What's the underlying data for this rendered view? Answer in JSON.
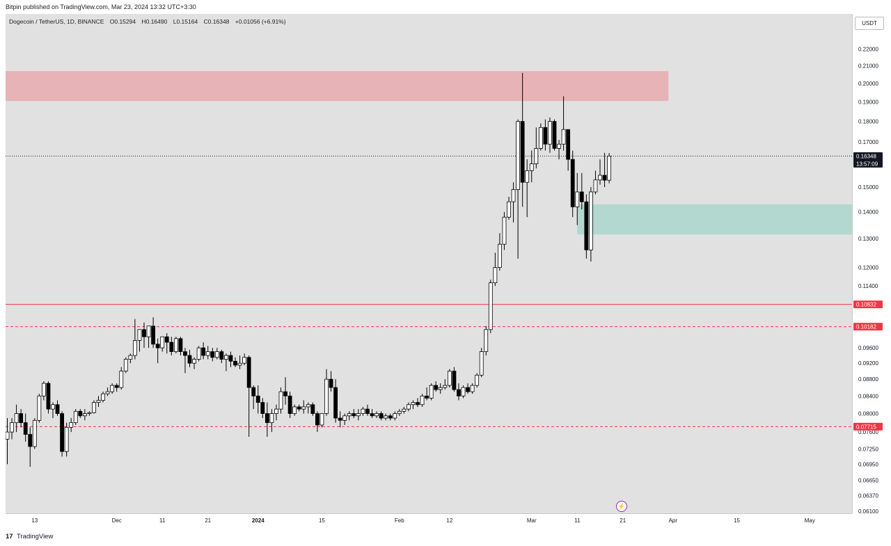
{
  "header": {
    "published": "Bitpin published on TradingView.com, Mar 23, 2024 13:32 UTC+3:30",
    "symbol": "Dogecoin / TetherUS, 1D, BINANCE",
    "open": "O0.15294",
    "high": "H0.16490",
    "low": "L0.15164",
    "close": "C0.16348",
    "change": "+0.01056 (+6.91%)"
  },
  "currency": "USDT",
  "footer": {
    "logo_mark": "17",
    "logo_text": "TradingView"
  },
  "chart_data": {
    "type": "candlestick",
    "title": "Dogecoin / TetherUS, 1D, BINANCE",
    "interval": "1D",
    "y_scale": "log",
    "ylim": [
      0.061,
      0.225
    ],
    "y_ticks": [
      "0.22000",
      "0.21000",
      "0.20000",
      "0.19000",
      "0.18000",
      "0.17000",
      "0.15000",
      "0.14000",
      "0.13000",
      "0.12000",
      "0.11400",
      "0.09600",
      "0.09200",
      "0.08800",
      "0.08400",
      "0.08000",
      "0.07600",
      "0.07250",
      "0.06950",
      "0.06650",
      "0.06370",
      "0.06100"
    ],
    "x_ticks": [
      {
        "label": "13",
        "date": "2023-11-13"
      },
      {
        "label": "Dec",
        "date": "2023-12-01"
      },
      {
        "label": "11",
        "date": "2023-12-11"
      },
      {
        "label": "21",
        "date": "2023-12-21"
      },
      {
        "label": "2024",
        "date": "2024-01-01",
        "bold": true
      },
      {
        "label": "15",
        "date": "2024-01-15"
      },
      {
        "label": "Feb",
        "date": "2024-02-01"
      },
      {
        "label": "12",
        "date": "2024-02-12"
      },
      {
        "label": "Mar",
        "date": "2024-03-01"
      },
      {
        "label": "11",
        "date": "2024-03-11"
      },
      {
        "label": "21",
        "date": "2024-03-21"
      },
      {
        "label": "Apr",
        "date": "2024-04-01"
      },
      {
        "label": "15",
        "date": "2024-04-15"
      },
      {
        "label": "May",
        "date": "2024-05-01"
      }
    ],
    "x_start_date": "2023-11-07",
    "candles_ohlc": [
      [
        0.0745,
        0.079,
        0.0695,
        0.076
      ],
      [
        0.076,
        0.079,
        0.0745,
        0.078
      ],
      [
        0.078,
        0.082,
        0.076,
        0.08
      ],
      [
        0.08,
        0.081,
        0.077,
        0.078
      ],
      [
        0.078,
        0.08,
        0.074,
        0.0755
      ],
      [
        0.0755,
        0.077,
        0.069,
        0.073
      ],
      [
        0.073,
        0.079,
        0.0725,
        0.0785
      ],
      [
        0.0785,
        0.0845,
        0.078,
        0.084
      ],
      [
        0.084,
        0.0875,
        0.083,
        0.087
      ],
      [
        0.087,
        0.0875,
        0.08,
        0.081
      ],
      [
        0.081,
        0.0825,
        0.079,
        0.082
      ],
      [
        0.082,
        0.083,
        0.0795,
        0.08
      ],
      [
        0.08,
        0.0805,
        0.071,
        0.072
      ],
      [
        0.072,
        0.078,
        0.071,
        0.077
      ],
      [
        0.077,
        0.079,
        0.076,
        0.078
      ],
      [
        0.078,
        0.081,
        0.0775,
        0.0805
      ],
      [
        0.0805,
        0.081,
        0.079,
        0.0795
      ],
      [
        0.0795,
        0.081,
        0.0785,
        0.08
      ],
      [
        0.08,
        0.0805,
        0.0795,
        0.0802
      ],
      [
        0.0802,
        0.083,
        0.08,
        0.0825
      ],
      [
        0.0825,
        0.084,
        0.0815,
        0.083
      ],
      [
        0.083,
        0.085,
        0.0825,
        0.0845
      ],
      [
        0.0845,
        0.086,
        0.084,
        0.085
      ],
      [
        0.085,
        0.087,
        0.0845,
        0.0865
      ],
      [
        0.0865,
        0.087,
        0.085,
        0.086
      ],
      [
        0.086,
        0.091,
        0.0855,
        0.09
      ],
      [
        0.09,
        0.0935,
        0.0895,
        0.093
      ],
      [
        0.093,
        0.0945,
        0.092,
        0.094
      ],
      [
        0.094,
        0.104,
        0.093,
        0.098
      ],
      [
        0.098,
        0.1,
        0.095,
        0.101
      ],
      [
        0.101,
        0.103,
        0.096,
        0.099
      ],
      [
        0.099,
        0.102,
        0.096,
        0.102
      ],
      [
        0.102,
        0.1045,
        0.096,
        0.097
      ],
      [
        0.097,
        0.0985,
        0.092,
        0.096
      ],
      [
        0.096,
        0.099,
        0.095,
        0.099
      ],
      [
        0.099,
        0.1,
        0.0945,
        0.0975
      ],
      [
        0.0975,
        0.099,
        0.094,
        0.095
      ],
      [
        0.095,
        0.099,
        0.0945,
        0.0985
      ],
      [
        0.0985,
        0.099,
        0.094,
        0.095
      ],
      [
        0.095,
        0.096,
        0.0895,
        0.094
      ],
      [
        0.094,
        0.0955,
        0.091,
        0.092
      ],
      [
        0.092,
        0.0935,
        0.0905,
        0.093
      ],
      [
        0.093,
        0.0965,
        0.0925,
        0.096
      ],
      [
        0.096,
        0.0975,
        0.093,
        0.094
      ],
      [
        0.094,
        0.0965,
        0.093,
        0.095
      ],
      [
        0.095,
        0.096,
        0.0925,
        0.0935
      ],
      [
        0.0935,
        0.096,
        0.093,
        0.095
      ],
      [
        0.095,
        0.0955,
        0.092,
        0.093
      ],
      [
        0.093,
        0.0945,
        0.09,
        0.094
      ],
      [
        0.094,
        0.095,
        0.091,
        0.0925
      ],
      [
        0.0925,
        0.0935,
        0.091,
        0.0915
      ],
      [
        0.0915,
        0.094,
        0.0905,
        0.092
      ],
      [
        0.092,
        0.0945,
        0.0915,
        0.0935
      ],
      [
        0.0935,
        0.094,
        0.075,
        0.086
      ],
      [
        0.086,
        0.0865,
        0.081,
        0.084
      ],
      [
        0.084,
        0.0865,
        0.08,
        0.0825
      ],
      [
        0.0825,
        0.0835,
        0.079,
        0.08
      ],
      [
        0.08,
        0.0825,
        0.075,
        0.078
      ],
      [
        0.078,
        0.081,
        0.076,
        0.08
      ],
      [
        0.08,
        0.082,
        0.0785,
        0.081
      ],
      [
        0.081,
        0.086,
        0.08,
        0.085
      ],
      [
        0.085,
        0.0885,
        0.082,
        0.084
      ],
      [
        0.084,
        0.085,
        0.079,
        0.08
      ],
      [
        0.08,
        0.082,
        0.0795,
        0.0815
      ],
      [
        0.0815,
        0.082,
        0.0805,
        0.081
      ],
      [
        0.081,
        0.083,
        0.08,
        0.0815
      ],
      [
        0.0815,
        0.0825,
        0.08,
        0.082
      ],
      [
        0.082,
        0.0825,
        0.0795,
        0.08
      ],
      [
        0.08,
        0.0805,
        0.076,
        0.0775
      ],
      [
        0.0775,
        0.08,
        0.077,
        0.08
      ],
      [
        0.08,
        0.0905,
        0.0795,
        0.088
      ],
      [
        0.088,
        0.09,
        0.085,
        0.086
      ],
      [
        0.086,
        0.088,
        0.078,
        0.079
      ],
      [
        0.079,
        0.0805,
        0.077,
        0.0785
      ],
      [
        0.0785,
        0.08,
        0.0775,
        0.0795
      ],
      [
        0.0795,
        0.0805,
        0.0785,
        0.08
      ],
      [
        0.08,
        0.081,
        0.079,
        0.0795
      ],
      [
        0.0795,
        0.081,
        0.0785,
        0.08
      ],
      [
        0.08,
        0.0815,
        0.0795,
        0.081
      ],
      [
        0.081,
        0.082,
        0.0795,
        0.08
      ],
      [
        0.08,
        0.081,
        0.079,
        0.0795
      ],
      [
        0.0795,
        0.0805,
        0.079,
        0.08
      ],
      [
        0.08,
        0.0805,
        0.0785,
        0.079
      ],
      [
        0.079,
        0.08,
        0.0785,
        0.0795
      ],
      [
        0.0795,
        0.08,
        0.0785,
        0.079
      ],
      [
        0.079,
        0.0805,
        0.0785,
        0.08
      ],
      [
        0.08,
        0.081,
        0.0795,
        0.0805
      ],
      [
        0.0805,
        0.0815,
        0.08,
        0.081
      ],
      [
        0.081,
        0.0825,
        0.0805,
        0.082
      ],
      [
        0.082,
        0.083,
        0.081,
        0.0825
      ],
      [
        0.0825,
        0.0835,
        0.0815,
        0.082
      ],
      [
        0.082,
        0.0845,
        0.0815,
        0.084
      ],
      [
        0.084,
        0.086,
        0.083,
        0.0835
      ],
      [
        0.0835,
        0.087,
        0.083,
        0.0865
      ],
      [
        0.0865,
        0.0875,
        0.085,
        0.0855
      ],
      [
        0.0855,
        0.087,
        0.0845,
        0.086
      ],
      [
        0.086,
        0.088,
        0.0855,
        0.0865
      ],
      [
        0.0865,
        0.0905,
        0.086,
        0.09
      ],
      [
        0.09,
        0.091,
        0.085,
        0.0855
      ],
      [
        0.0855,
        0.087,
        0.083,
        0.084
      ],
      [
        0.084,
        0.0865,
        0.0835,
        0.086
      ],
      [
        0.086,
        0.087,
        0.0845,
        0.085
      ],
      [
        0.085,
        0.087,
        0.0845,
        0.0865
      ],
      [
        0.0865,
        0.0895,
        0.086,
        0.089
      ],
      [
        0.089,
        0.096,
        0.0885,
        0.095
      ],
      [
        0.095,
        0.102,
        0.094,
        0.101
      ],
      [
        0.101,
        0.116,
        0.1,
        0.115
      ],
      [
        0.115,
        0.125,
        0.114,
        0.12
      ],
      [
        0.12,
        0.132,
        0.119,
        0.128
      ],
      [
        0.128,
        0.14,
        0.126,
        0.138
      ],
      [
        0.138,
        0.146,
        0.137,
        0.144
      ],
      [
        0.144,
        0.152,
        0.136,
        0.149
      ],
      [
        0.149,
        0.181,
        0.123,
        0.18
      ],
      [
        0.18,
        0.206,
        0.142,
        0.152
      ],
      [
        0.152,
        0.162,
        0.138,
        0.157
      ],
      [
        0.157,
        0.166,
        0.152,
        0.16
      ],
      [
        0.16,
        0.177,
        0.158,
        0.167
      ],
      [
        0.167,
        0.179,
        0.166,
        0.177
      ],
      [
        0.177,
        0.181,
        0.166,
        0.169
      ],
      [
        0.169,
        0.182,
        0.165,
        0.18
      ],
      [
        0.18,
        0.181,
        0.166,
        0.167
      ],
      [
        0.167,
        0.171,
        0.162,
        0.169
      ],
      [
        0.169,
        0.193,
        0.166,
        0.176
      ],
      [
        0.176,
        0.176,
        0.157,
        0.162
      ],
      [
        0.162,
        0.166,
        0.138,
        0.142
      ],
      [
        0.142,
        0.156,
        0.135,
        0.148
      ],
      [
        0.148,
        0.156,
        0.141,
        0.144
      ],
      [
        0.144,
        0.147,
        0.123,
        0.126
      ],
      [
        0.126,
        0.15,
        0.122,
        0.148
      ],
      [
        0.148,
        0.157,
        0.147,
        0.153
      ],
      [
        0.153,
        0.162,
        0.151,
        0.155
      ],
      [
        0.155,
        0.165,
        0.15,
        0.1529
      ],
      [
        0.1529,
        0.1649,
        0.1516,
        0.1635
      ]
    ],
    "zones": [
      {
        "type": "supply",
        "color": "#e8b3b6",
        "low": 0.1905,
        "high": 0.207,
        "from_index": 0,
        "to_date": "2024-03-31"
      },
      {
        "type": "demand",
        "color": "#b2d8cf",
        "low": 0.1315,
        "high": 0.143,
        "from_index": 125,
        "to": "right-edge"
      }
    ],
    "levels": [
      {
        "value": 0.10832,
        "label": "0.10832",
        "style": "solid",
        "color": "#f23645"
      },
      {
        "value": 0.10182,
        "label": "0.10182",
        "style": "dashed",
        "color": "#f23645"
      },
      {
        "value": 0.07715,
        "label": "0.07715",
        "style": "dashed",
        "color": "#f23645"
      },
      {
        "value": 0.16348,
        "label": "0.16348",
        "style": "dotted",
        "color": "#131722",
        "countdown": "13:57:09"
      }
    ],
    "grid": false,
    "up_color": "#ffffff",
    "down_color": "#000000"
  }
}
